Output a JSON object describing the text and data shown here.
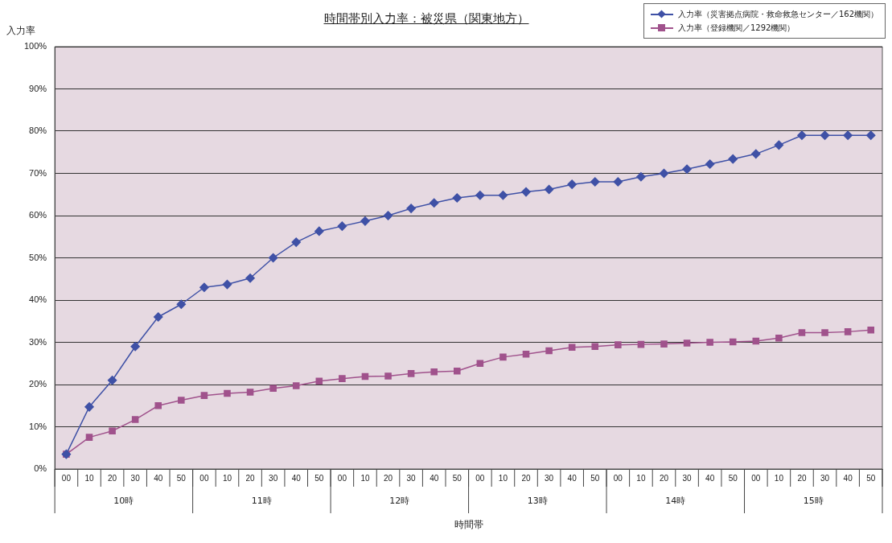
{
  "chart_data": {
    "type": "line",
    "title": "時間帯別入力率：被災県（関東地方）",
    "xlabel": "時間帯",
    "ylabel": "入力率",
    "categories": [
      "00",
      "10",
      "20",
      "30",
      "40",
      "50",
      "00",
      "10",
      "20",
      "30",
      "40",
      "50",
      "00",
      "10",
      "20",
      "30",
      "40",
      "50",
      "00",
      "10",
      "20",
      "30",
      "40",
      "50",
      "00",
      "10",
      "20",
      "30",
      "40",
      "50",
      "00",
      "10",
      "20",
      "30",
      "40",
      "50"
    ],
    "annotations": [
      "10時",
      "11時",
      "12時",
      "13時",
      "14時",
      "15時"
    ],
    "series": [
      {
        "name": "入力率（災害拠点病院・救命救急センター／162機関）",
        "color": "#3f51a6",
        "marker": "diamond",
        "values": [
          3.5,
          14.7,
          21,
          29,
          36,
          39,
          43,
          43.7,
          45.2,
          50,
          53.7,
          56.3,
          57.5,
          58.7,
          60,
          61.7,
          63,
          64.2,
          64.8,
          64.8,
          65.6,
          66.2,
          67.4,
          68,
          68,
          69.2,
          70,
          71,
          72.2,
          73.4,
          74.6,
          76.7,
          79,
          79,
          79,
          79
        ]
      },
      {
        "name": "入力率（登録機関／1292機関）",
        "color": "#a0528c",
        "marker": "square",
        "values": [
          3.5,
          7.5,
          9,
          11.7,
          15,
          16.3,
          17.4,
          17.9,
          18.2,
          19.1,
          19.7,
          20.8,
          21.4,
          21.9,
          22,
          22.6,
          23,
          23.2,
          25,
          26.5,
          27.2,
          28,
          28.8,
          29,
          29.4,
          29.5,
          29.6,
          29.8,
          30,
          30.1,
          30.3,
          31,
          32.3,
          32.3,
          32.5,
          32.9
        ]
      }
    ],
    "ylim": [
      0,
      100
    ],
    "yticks": [
      {
        "value": 0,
        "label": "0%"
      },
      {
        "value": 10,
        "label": "10%"
      },
      {
        "value": 20,
        "label": "20%"
      },
      {
        "value": 30,
        "label": "30%"
      },
      {
        "value": 40,
        "label": "40%"
      },
      {
        "value": 50,
        "label": "50%"
      },
      {
        "value": 60,
        "label": "60%"
      },
      {
        "value": 70,
        "label": "70%"
      },
      {
        "value": 80,
        "label": "80%"
      },
      {
        "value": 90,
        "label": "90%"
      },
      {
        "value": 100,
        "label": "100%"
      }
    ],
    "grid": "y",
    "legend": "top right"
  }
}
